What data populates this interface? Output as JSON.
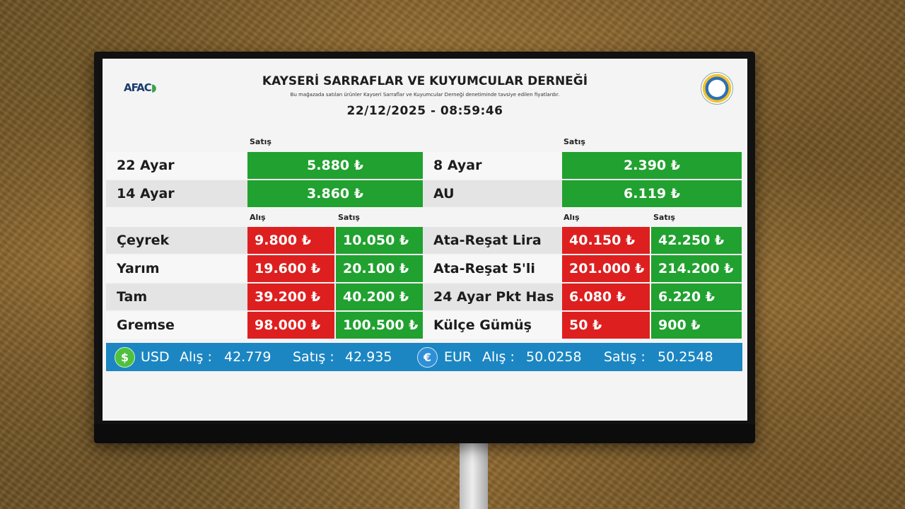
{
  "header": {
    "logo_left": "AFAC",
    "title": "KAYSERİ SARRAFLAR VE KUYUMCULAR DERNEĞİ",
    "subtitle": "Bu mağazada satılan ürünler Kayseri Sarraflar ve Kuyumcular Derneği denetiminde tavsiye edilen fiyatlardır.",
    "datetime": "22/12/2025 - 08:59:46"
  },
  "labels": {
    "satis": "Satış",
    "alis": "Alış"
  },
  "single": {
    "left": [
      {
        "name": "22 Ayar",
        "satis": "5.880 ₺"
      },
      {
        "name": "14 Ayar",
        "satis": "3.860 ₺"
      }
    ],
    "right": [
      {
        "name": "8 Ayar",
        "satis": "2.390 ₺"
      },
      {
        "name": "AU",
        "satis": "6.119 ₺"
      }
    ]
  },
  "dual": {
    "left": [
      {
        "name": "Çeyrek",
        "alis": "9.800 ₺",
        "satis": "10.050 ₺"
      },
      {
        "name": "Yarım",
        "alis": "19.600 ₺",
        "satis": "20.100 ₺"
      },
      {
        "name": "Tam",
        "alis": "39.200 ₺",
        "satis": "40.200 ₺"
      },
      {
        "name": "Gremse",
        "alis": "98.000 ₺",
        "satis": "100.500 ₺"
      }
    ],
    "right": [
      {
        "name": "Ata-Reşat Lira",
        "alis": "40.150 ₺",
        "satis": "42.250 ₺"
      },
      {
        "name": "Ata-Reşat 5'li",
        "alis": "201.000 ₺",
        "satis": "214.200 ₺"
      },
      {
        "name": "24 Ayar Pkt Has",
        "alis": "6.080 ₺",
        "satis": "6.220 ₺"
      },
      {
        "name": "Külçe Gümüş",
        "alis": "50 ₺",
        "satis": "900 ₺"
      }
    ]
  },
  "fx": {
    "usd": {
      "symbol": "$",
      "code": "USD",
      "alis_label": "Alış :",
      "alis": "42.779",
      "satis_label": "Satış :",
      "satis": "42.935"
    },
    "eur": {
      "symbol": "€",
      "code": "EUR",
      "alis_label": "Alış :",
      "alis": "50.0258",
      "satis_label": "Satış :",
      "satis": "50.2548"
    }
  },
  "colors": {
    "buy_red": "#de1f1f",
    "sell_green": "#21a12f",
    "fx_blue": "#1c86c2"
  }
}
